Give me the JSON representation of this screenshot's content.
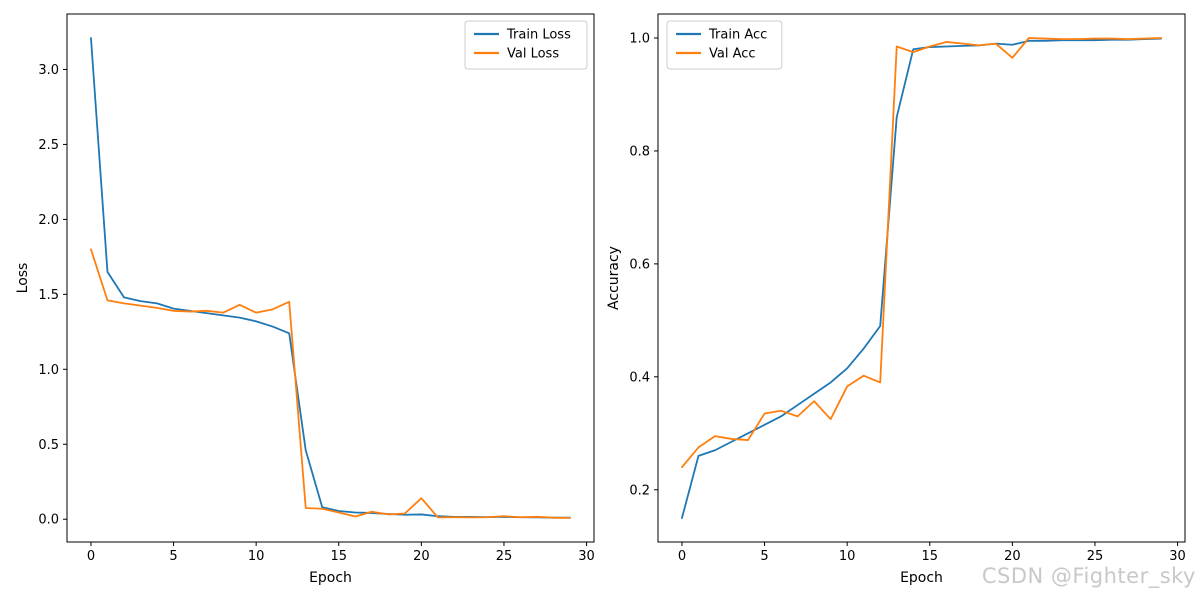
{
  "page": {
    "background": "#ffffff",
    "watermark": {
      "text": "CSDN @Fighter_sky",
      "color": "#c8c8c8"
    }
  },
  "chart_data": [
    {
      "type": "line",
      "title": "",
      "xlabel": "Epoch",
      "ylabel": "Loss",
      "legend_position": "upper right",
      "grid": false,
      "xlim": [
        -1.45,
        30.45
      ],
      "ylim": [
        -0.152,
        3.37
      ],
      "xticks": [
        0,
        5,
        10,
        15,
        20,
        25,
        30
      ],
      "xtick_labels": [
        "0",
        "5",
        "10",
        "15",
        "20",
        "25",
        "30"
      ],
      "yticks": [
        0.0,
        0.5,
        1.0,
        1.5,
        2.0,
        2.5,
        3.0
      ],
      "ytick_labels": [
        "0.0",
        "0.5",
        "1.0",
        "1.5",
        "2.0",
        "2.5",
        "3.0"
      ],
      "x": [
        0,
        1,
        2,
        3,
        4,
        5,
        6,
        7,
        8,
        9,
        10,
        11,
        12,
        13,
        14,
        15,
        16,
        17,
        18,
        19,
        20,
        21,
        22,
        23,
        24,
        25,
        26,
        27,
        28,
        29
      ],
      "series": [
        {
          "name": "Train Loss",
          "color": "#1f77b4",
          "values": [
            3.21,
            1.65,
            1.48,
            1.455,
            1.44,
            1.405,
            1.39,
            1.375,
            1.36,
            1.345,
            1.32,
            1.285,
            1.24,
            0.46,
            0.08,
            0.055,
            0.045,
            0.042,
            0.035,
            0.03,
            0.032,
            0.02,
            0.015,
            0.015,
            0.014,
            0.016,
            0.013,
            0.012,
            0.01,
            0.01
          ]
        },
        {
          "name": "Val Loss",
          "color": "#ff7f0e",
          "values": [
            1.8,
            1.46,
            1.44,
            1.425,
            1.41,
            1.39,
            1.385,
            1.39,
            1.378,
            1.43,
            1.378,
            1.4,
            1.45,
            0.075,
            0.07,
            0.045,
            0.018,
            0.05,
            0.032,
            0.038,
            0.14,
            0.012,
            0.013,
            0.012,
            0.013,
            0.02,
            0.013,
            0.016,
            0.01,
            0.009
          ]
        }
      ]
    },
    {
      "type": "line",
      "title": "",
      "xlabel": "Epoch",
      "ylabel": "Accuracy",
      "legend_position": "upper left",
      "grid": false,
      "xlim": [
        -1.45,
        30.45
      ],
      "ylim": [
        0.1075,
        1.0425
      ],
      "xticks": [
        0,
        5,
        10,
        15,
        20,
        25,
        30
      ],
      "xtick_labels": [
        "0",
        "5",
        "10",
        "15",
        "20",
        "25",
        "30"
      ],
      "yticks": [
        0.2,
        0.4,
        0.6,
        0.8,
        1.0
      ],
      "ytick_labels": [
        "0.2",
        "0.4",
        "0.6",
        "0.8",
        "1.0"
      ],
      "x": [
        0,
        1,
        2,
        3,
        4,
        5,
        6,
        7,
        8,
        9,
        10,
        11,
        12,
        13,
        14,
        15,
        16,
        17,
        18,
        19,
        20,
        21,
        22,
        23,
        24,
        25,
        26,
        27,
        28,
        29
      ],
      "series": [
        {
          "name": "Train Acc",
          "color": "#1f77b4",
          "values": [
            0.15,
            0.26,
            0.27,
            0.285,
            0.3,
            0.315,
            0.33,
            0.35,
            0.37,
            0.39,
            0.415,
            0.45,
            0.49,
            0.86,
            0.98,
            0.984,
            0.985,
            0.986,
            0.987,
            0.99,
            0.988,
            0.995,
            0.995,
            0.996,
            0.996,
            0.996,
            0.997,
            0.997,
            0.998,
            0.999
          ]
        },
        {
          "name": "Val Acc",
          "color": "#ff7f0e",
          "values": [
            0.24,
            0.275,
            0.295,
            0.29,
            0.288,
            0.335,
            0.34,
            0.33,
            0.357,
            0.325,
            0.383,
            0.402,
            0.39,
            0.985,
            0.975,
            0.985,
            0.993,
            0.99,
            0.987,
            0.99,
            0.965,
            1.0,
            0.999,
            0.998,
            0.998,
            0.999,
            0.999,
            0.998,
            0.999,
            1.0
          ]
        }
      ]
    }
  ]
}
